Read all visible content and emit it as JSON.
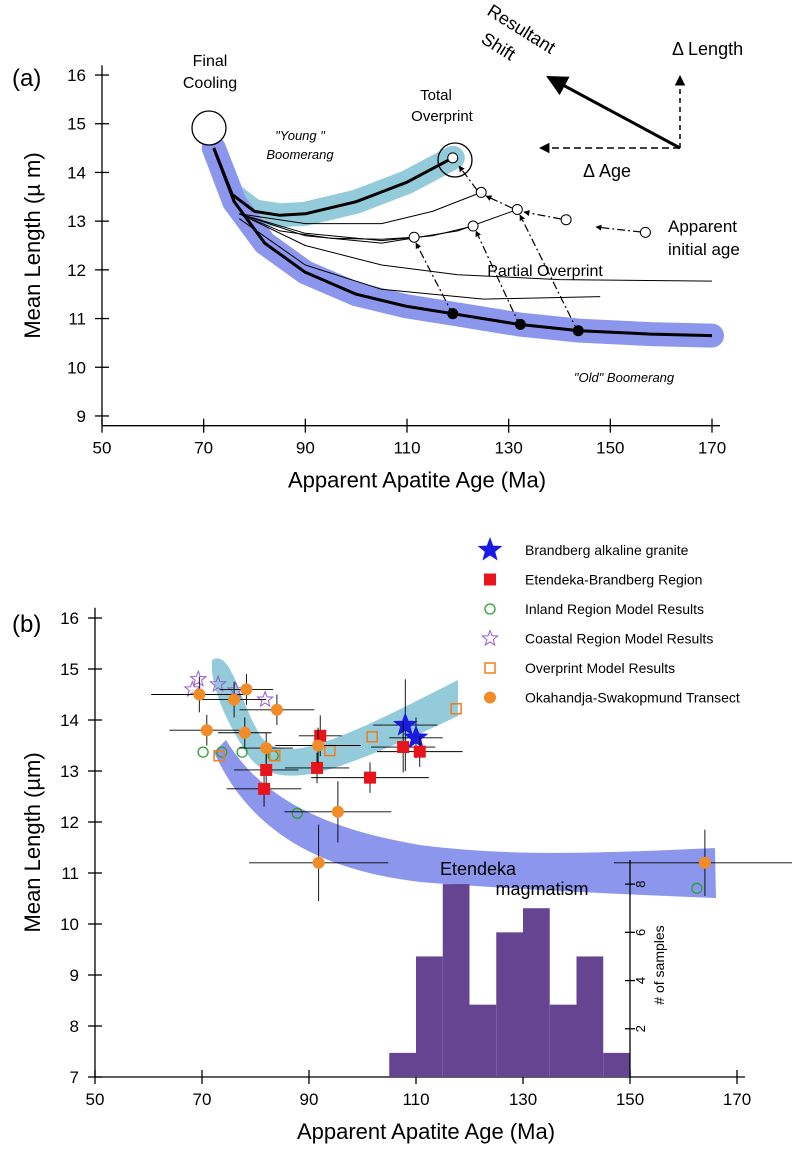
{
  "chart_data": [
    {
      "type": "line",
      "xlabel": "Apparent Apatite Age (Ma)",
      "ylabel": "Mean Length (µ m)",
      "xlim": [
        50,
        170
      ],
      "ylim": [
        8.8,
        16.2
      ],
      "xticks": [
        50,
        70,
        90,
        110,
        130,
        150,
        170
      ],
      "yticks": [
        9,
        10,
        11,
        12,
        13,
        14,
        15,
        16
      ],
      "series": [
        {
          "x": [
            72,
            75.6,
            80,
            85,
            90,
            100,
            110,
            119
          ],
          "values": [
            14.5,
            13.55,
            13.2,
            13.12,
            13.15,
            13.4,
            13.8,
            14.3
          ],
          "color": "#000000",
          "band_color": "#93cbdb"
        },
        {
          "x": [
            72,
            76,
            82,
            90,
            100,
            110,
            119,
            132,
            144,
            158,
            170
          ],
          "values": [
            14.5,
            13.4,
            12.55,
            11.95,
            11.5,
            11.25,
            11.1,
            10.88,
            10.75,
            10.68,
            10.65
          ],
          "color": "#000000",
          "band_color": "#8c96ec"
        },
        {
          "x": [
            77,
            85,
            95,
            105,
            111.4
          ],
          "values": [
            13.15,
            12.8,
            12.65,
            12.63,
            12.67
          ],
          "color": "#000000"
        },
        {
          "x": [
            77,
            90,
            105,
            115,
            123
          ],
          "values": [
            13.15,
            12.75,
            12.6,
            12.7,
            12.9
          ],
          "color": "#000000"
        },
        {
          "x": [
            77,
            90,
            105,
            120,
            131.7
          ],
          "values": [
            13.15,
            12.7,
            12.55,
            12.8,
            13.24
          ],
          "color": "#000000"
        },
        {
          "x": [
            77,
            90,
            105,
            115,
            124.6
          ],
          "values": [
            13.15,
            12.95,
            12.95,
            13.2,
            13.59
          ],
          "color": "#000000"
        },
        {
          "x": [
            77,
            90,
            105,
            120,
            140,
            170
          ],
          "values": [
            13.15,
            12.5,
            12.1,
            11.9,
            11.8,
            11.77
          ],
          "color": "#000000"
        },
        {
          "x": [
            77,
            90,
            105,
            125,
            148
          ],
          "values": [
            13.05,
            12.1,
            11.6,
            11.4,
            11.45
          ],
          "color": "#000000"
        }
      ],
      "points": [
        {
          "marker": "open",
          "x": [
            111.4,
            123,
            131.7,
            124.6,
            141.3,
            156.9,
            119
          ],
          "values": [
            12.67,
            12.9,
            13.24,
            13.59,
            13.03,
            12.77,
            14.3
          ]
        },
        {
          "marker": "filled",
          "x": [
            119,
            132.3,
            143.7
          ],
          "values": [
            11.1,
            10.88,
            10.75
          ]
        }
      ],
      "annotations": [
        {
          "text": [
            "(a)"
          ]
        },
        {
          "text": [
            "Final",
            "Cooling"
          ]
        },
        {
          "text": [
            "Total",
            "Overprint"
          ]
        },
        {
          "text": [
            "\"Young \"",
            "Boomerang"
          ]
        },
        {
          "text": [
            "Partial Overprint"
          ]
        },
        {
          "text": [
            "Apparent",
            "initial age"
          ]
        },
        {
          "text": [
            "\"Old\" Boomerang"
          ]
        },
        {
          "text": [
            "Resultant",
            "Shift"
          ]
        },
        {
          "text": [
            "Δ Length"
          ]
        },
        {
          "text": [
            "Δ Age"
          ]
        }
      ]
    },
    {
      "type": "scatter",
      "xlabel": "Apparent Apatite Age (Ma)",
      "ylabel": "Mean Length (µm)",
      "xlim": [
        50,
        170
      ],
      "ylim": [
        7,
        16.2
      ],
      "xticks": [
        50,
        70,
        90,
        110,
        130,
        150,
        170
      ],
      "yticks": [
        7,
        8,
        9,
        10,
        11,
        12,
        13,
        14,
        15,
        16
      ],
      "legend": "top-right",
      "series": [
        {
          "name": "Brandberg alkaline granite",
          "marker": "star",
          "color": "#1a1ae0",
          "x": [
            108,
            110
          ],
          "values": [
            13.9,
            13.65
          ],
          "xerr": [
            6,
            5
          ],
          "yerr": [
            0.9,
            0.4
          ]
        },
        {
          "name": "Etendeka-Brandberg Region",
          "marker": "square",
          "color": "#e8141c",
          "x": [
            92.1,
            91.5,
            82,
            81.6,
            101.4,
            107.6,
            110.7
          ],
          "values": [
            13.69,
            13.06,
            13.02,
            12.65,
            12.87,
            13.47,
            13.38
          ],
          "xerr": [
            4,
            6,
            6,
            7,
            11,
            6,
            8
          ],
          "yerr": [
            0.4,
            0.3,
            0.3,
            0.35,
            0.3,
            0.5,
            0.3
          ]
        },
        {
          "name": "Inland Region Model Results",
          "marker": "circle-open",
          "color": "#2ca02c",
          "x": [
            70.2,
            73.7,
            77.5,
            83.3,
            87.8,
            162.5
          ],
          "values": [
            13.37,
            13.37,
            13.37,
            13.3,
            12.17,
            10.7
          ]
        },
        {
          "name": "Coastal Region Model Results",
          "marker": "star-open",
          "color": "#9b59d0",
          "x": [
            68.2,
            69.3,
            73,
            76.3,
            81.8
          ],
          "values": [
            14.6,
            14.8,
            14.7,
            14.58,
            14.4
          ]
        },
        {
          "name": "Overprint Model Results",
          "marker": "square-open",
          "color": "#f07d1a",
          "x": [
            73.2,
            83.6,
            93.9,
            101.8,
            117.5
          ],
          "values": [
            13.3,
            13.3,
            13.4,
            13.67,
            14.22
          ]
        },
        {
          "name": "Okahandja-Swakopmund Transect",
          "marker": "circle",
          "color": "#f28c28",
          "x": [
            69.5,
            70.9,
            76,
            78.3,
            78,
            84,
            82,
            91.7,
            95.4,
            91.8,
            164
          ],
          "values": [
            14.5,
            13.8,
            14.4,
            14.6,
            13.75,
            14.2,
            13.45,
            13.5,
            12.2,
            11.2,
            11.2
          ],
          "xerr": [
            9,
            7,
            6,
            5,
            5,
            7,
            5,
            8,
            10,
            13,
            17
          ],
          "yerr": [
            0.35,
            0.3,
            0.35,
            0.3,
            0.3,
            0.3,
            0.3,
            0.35,
            0.6,
            0.75,
            0.65
          ]
        }
      ],
      "annotations": [
        {
          "text": [
            "(b)"
          ]
        }
      ]
    },
    {
      "type": "histogram",
      "xlim": [
        50,
        170
      ],
      "ylim": [
        0,
        9
      ],
      "yticks": [
        2,
        4,
        6,
        8
      ],
      "ylabel": "# of samples",
      "bins": [
        105,
        110,
        115,
        120,
        125,
        130,
        135,
        140,
        145,
        150
      ],
      "values": [
        1,
        5,
        8,
        3,
        6,
        7,
        3,
        5,
        1
      ],
      "color": "#654591",
      "annotations": [
        {
          "text": [
            "Etendeka",
            "magmatism"
          ]
        }
      ]
    }
  ]
}
